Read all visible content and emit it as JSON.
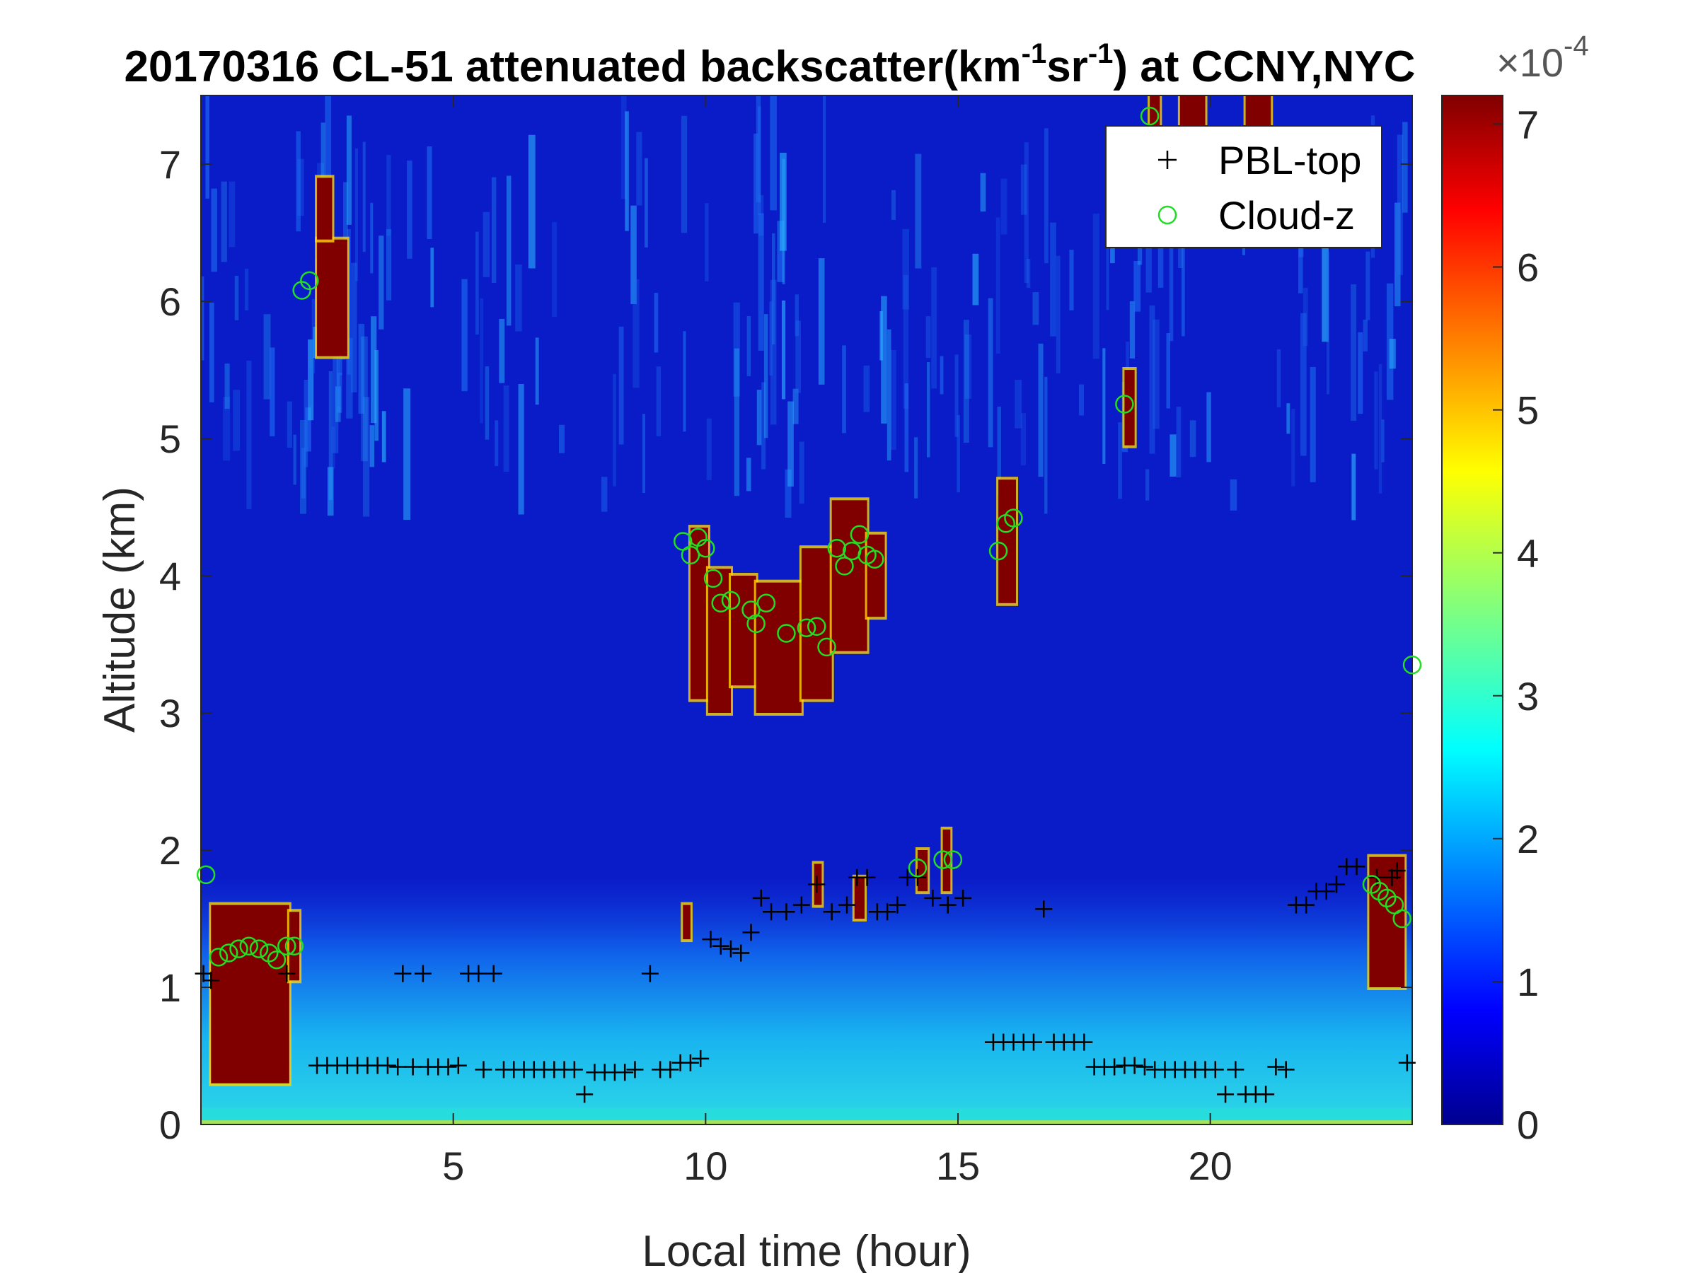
{
  "chart_data": {
    "type": "heatmap",
    "title": {
      "prefix": "20170316  CL-51 attenuated backscatter(km",
      "sup1": "-1",
      "mid": "sr",
      "sup2": "-1",
      "suffix": ") at CCNY,NYC"
    },
    "xlabel": "Local time (hour)",
    "ylabel": "Altitude (km)",
    "xlim": [
      0,
      24
    ],
    "ylim": [
      0,
      7.5
    ],
    "xticks": [
      5,
      10,
      15,
      20
    ],
    "yticks": [
      0,
      1,
      2,
      3,
      4,
      5,
      6,
      7
    ],
    "colorbar": {
      "colormap": "jet",
      "ticks": [
        0,
        1,
        2,
        3,
        4,
        5,
        6,
        7
      ],
      "limits": [
        0,
        7.2
      ],
      "exponent_base": "×10",
      "exponent": "-4"
    },
    "legend": {
      "placement": "top-right",
      "entries": [
        {
          "name": "PBL-top",
          "marker": "plus",
          "color": "#000000"
        },
        {
          "name": "Cloud-z",
          "marker": "circle",
          "color": "#22dd22"
        }
      ]
    },
    "series": [
      {
        "name": "PBL-top",
        "x": [
          0.05,
          0.2,
          1.7,
          2.3,
          2.5,
          2.7,
          2.9,
          3.1,
          3.3,
          3.5,
          3.7,
          3.9,
          4.0,
          4.2,
          4.4,
          4.5,
          4.7,
          4.9,
          5.1,
          5.3,
          5.5,
          5.6,
          5.8,
          6.0,
          6.2,
          6.4,
          6.6,
          6.8,
          7.0,
          7.2,
          7.4,
          7.6,
          7.8,
          8.0,
          8.2,
          8.4,
          8.6,
          8.9,
          9.1,
          9.3,
          9.5,
          9.7,
          9.9,
          10.1,
          10.3,
          10.5,
          10.7,
          10.9,
          11.1,
          11.3,
          11.6,
          11.9,
          12.2,
          12.5,
          12.8,
          13.0,
          13.2,
          13.4,
          13.6,
          13.8,
          14.0,
          14.2,
          14.5,
          14.8,
          15.1,
          15.7,
          15.9,
          16.1,
          16.3,
          16.5,
          16.7,
          16.9,
          17.1,
          17.3,
          17.5,
          17.7,
          17.9,
          18.1,
          18.3,
          18.5,
          18.7,
          18.9,
          19.1,
          19.3,
          19.5,
          19.7,
          19.9,
          20.1,
          20.3,
          20.5,
          20.7,
          20.9,
          21.1,
          21.3,
          21.5,
          21.7,
          21.9,
          22.1,
          22.3,
          22.5,
          22.7,
          22.9,
          23.3,
          23.6,
          23.7,
          23.9
        ],
        "y": [
          1.1,
          1.05,
          1.1,
          0.43,
          0.43,
          0.43,
          0.43,
          0.43,
          0.43,
          0.43,
          0.43,
          0.42,
          1.1,
          0.42,
          1.1,
          0.42,
          0.42,
          0.42,
          0.43,
          1.1,
          1.1,
          0.4,
          1.1,
          0.4,
          0.4,
          0.4,
          0.4,
          0.4,
          0.4,
          0.4,
          0.4,
          0.22,
          0.38,
          0.38,
          0.38,
          0.38,
          0.4,
          1.1,
          0.4,
          0.4,
          0.45,
          0.45,
          0.48,
          1.35,
          1.3,
          1.28,
          1.25,
          1.4,
          1.65,
          1.55,
          1.55,
          1.6,
          1.75,
          1.55,
          1.6,
          1.8,
          1.8,
          1.55,
          1.55,
          1.6,
          1.8,
          1.8,
          1.65,
          1.6,
          1.65,
          0.6,
          0.6,
          0.6,
          0.6,
          0.6,
          1.57,
          0.6,
          0.6,
          0.6,
          0.6,
          0.42,
          0.42,
          0.42,
          0.43,
          0.43,
          0.42,
          0.4,
          0.4,
          0.4,
          0.4,
          0.4,
          0.4,
          0.4,
          0.22,
          0.4,
          0.22,
          0.22,
          0.22,
          0.42,
          0.4,
          1.6,
          1.6,
          1.7,
          1.7,
          1.75,
          1.88,
          1.88,
          1.8,
          1.8,
          1.85,
          0.45
        ]
      },
      {
        "name": "Cloud-z",
        "x": [
          0.1,
          0.35,
          0.55,
          0.75,
          0.95,
          1.15,
          1.35,
          1.5,
          1.7,
          1.85,
          2.0,
          2.15,
          9.55,
          9.7,
          9.85,
          10.0,
          10.15,
          10.3,
          10.5,
          10.9,
          11.0,
          11.2,
          11.6,
          12.0,
          12.2,
          12.4,
          12.6,
          12.75,
          12.9,
          13.05,
          13.2,
          13.35,
          14.2,
          14.7,
          14.9,
          15.8,
          15.95,
          16.1,
          18.3,
          18.8,
          23.2,
          23.35,
          23.5,
          23.65,
          23.8,
          24.0
        ],
        "y": [
          1.82,
          1.22,
          1.25,
          1.28,
          1.3,
          1.28,
          1.25,
          1.2,
          1.3,
          1.3,
          6.08,
          6.15,
          4.25,
          4.15,
          4.28,
          4.2,
          3.98,
          3.8,
          3.82,
          3.75,
          3.65,
          3.8,
          3.58,
          3.62,
          3.63,
          3.48,
          4.2,
          4.07,
          4.18,
          4.3,
          4.15,
          4.12,
          1.87,
          1.93,
          1.93,
          4.18,
          4.38,
          4.42,
          5.25,
          7.35,
          1.75,
          1.7,
          1.65,
          1.6,
          1.5,
          3.35
        ]
      }
    ]
  }
}
